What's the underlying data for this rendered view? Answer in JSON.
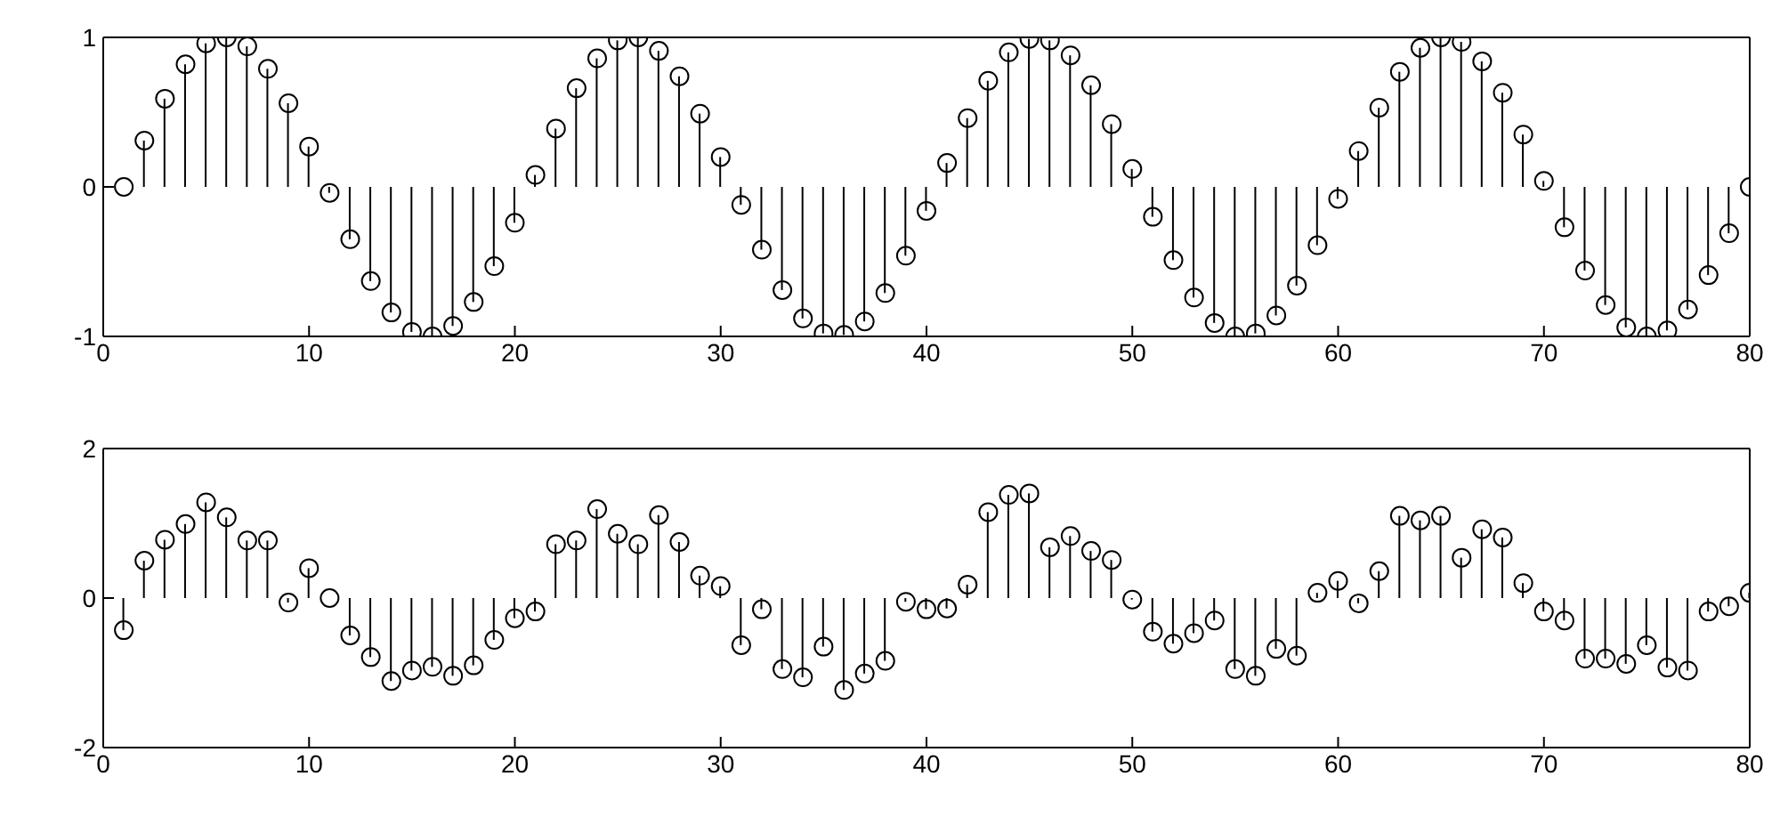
{
  "chart_data": [
    {
      "type": "lollipop",
      "x": [
        1,
        2,
        3,
        4,
        5,
        6,
        7,
        8,
        9,
        10,
        11,
        12,
        13,
        14,
        15,
        16,
        17,
        18,
        19,
        20,
        21,
        22,
        23,
        24,
        25,
        26,
        27,
        28,
        29,
        30,
        31,
        32,
        33,
        34,
        35,
        36,
        37,
        38,
        39,
        40,
        41,
        42,
        43,
        44,
        45,
        46,
        47,
        48,
        49,
        50,
        51,
        52,
        53,
        54,
        55,
        56,
        57,
        58,
        59,
        60,
        61,
        62,
        63,
        64,
        65,
        66,
        67,
        68,
        69,
        70,
        71,
        72,
        73,
        74,
        75,
        76,
        77,
        78,
        79,
        80
      ],
      "series": [
        {
          "color": "#000000",
          "values": [
            0,
            0.31,
            0.59,
            0.82,
            0.96,
            1,
            0.94,
            0.79,
            0.56,
            0.27,
            -0.04,
            -0.35,
            -0.63,
            -0.84,
            -0.97,
            -1,
            -0.93,
            -0.77,
            -0.53,
            -0.24,
            0.08,
            0.39,
            0.66,
            0.86,
            0.98,
            1,
            0.91,
            0.74,
            0.49,
            0.2,
            -0.12,
            -0.42,
            -0.69,
            -0.88,
            -0.98,
            -0.99,
            -0.9,
            -0.71,
            -0.46,
            -0.16,
            0.16,
            0.46,
            0.71,
            0.9,
            0.99,
            0.98,
            0.88,
            0.68,
            0.42,
            0.12,
            -0.2,
            -0.49,
            -0.74,
            -0.91,
            -1,
            -0.98,
            -0.86,
            -0.66,
            -0.39,
            -0.08,
            0.24,
            0.53,
            0.77,
            0.93,
            1,
            0.97,
            0.84,
            0.63,
            0.35,
            0.04,
            -0.27,
            -0.56,
            -0.79,
            -0.94,
            -1,
            -0.96,
            -0.82,
            -0.59,
            -0.31,
            0
          ]
        }
      ],
      "xlim": [
        0,
        80
      ],
      "xticks": [
        0,
        10,
        20,
        30,
        40,
        50,
        60,
        70,
        80
      ],
      "ylim": [
        -1,
        1
      ],
      "yticks": [
        -1,
        0,
        1
      ],
      "marker": "circle",
      "legend": false
    },
    {
      "type": "lollipop",
      "x": [
        1,
        2,
        3,
        4,
        5,
        6,
        7,
        8,
        9,
        10,
        11,
        12,
        13,
        14,
        15,
        16,
        17,
        18,
        19,
        20,
        21,
        22,
        23,
        24,
        25,
        26,
        27,
        28,
        29,
        30,
        31,
        32,
        33,
        34,
        35,
        36,
        37,
        38,
        39,
        40,
        41,
        42,
        43,
        44,
        45,
        46,
        47,
        48,
        49,
        50,
        51,
        52,
        53,
        54,
        55,
        56,
        57,
        58,
        59,
        60,
        61,
        62,
        63,
        64,
        65,
        66,
        67,
        68,
        69,
        70,
        71,
        72,
        73,
        74,
        75,
        76,
        77,
        78,
        79,
        80
      ],
      "series": [
        {
          "color": "#000000",
          "values": [
            -0.43,
            0.5,
            0.78,
            0.99,
            1.28,
            1.08,
            0.77,
            0.77,
            -0.06,
            0.4,
            0,
            -0.5,
            -0.79,
            -1.11,
            -0.97,
            -0.92,
            -1.04,
            -0.9,
            -0.56,
            -0.27,
            -0.18,
            0.72,
            0.77,
            1.19,
            0.86,
            0.72,
            1.11,
            0.75,
            0.3,
            0.16,
            -0.63,
            -0.15,
            -0.95,
            -1.06,
            -0.65,
            -1.23,
            -1.01,
            -0.84,
            -0.05,
            -0.15,
            -0.14,
            0.18,
            1.15,
            1.38,
            1.4,
            0.68,
            0.83,
            0.63,
            0.51,
            -0.02,
            -0.45,
            -0.61,
            -0.47,
            -0.3,
            -0.95,
            -1.04,
            -0.68,
            -0.77,
            0.07,
            0.23,
            -0.07,
            0.36,
            1.1,
            1.04,
            1.1,
            0.54,
            0.92,
            0.81,
            0.2,
            -0.18,
            -0.3,
            -0.81,
            -0.81,
            -0.88,
            -0.63,
            -0.93,
            -0.97,
            -0.18,
            -0.11,
            0.07
          ]
        }
      ],
      "xlim": [
        0,
        80
      ],
      "xticks": [
        0,
        10,
        20,
        30,
        40,
        50,
        60,
        70,
        80
      ],
      "ylim": [
        -2,
        2
      ],
      "yticks": [
        -2,
        0,
        2
      ],
      "marker": "circle",
      "legend": false
    }
  ]
}
